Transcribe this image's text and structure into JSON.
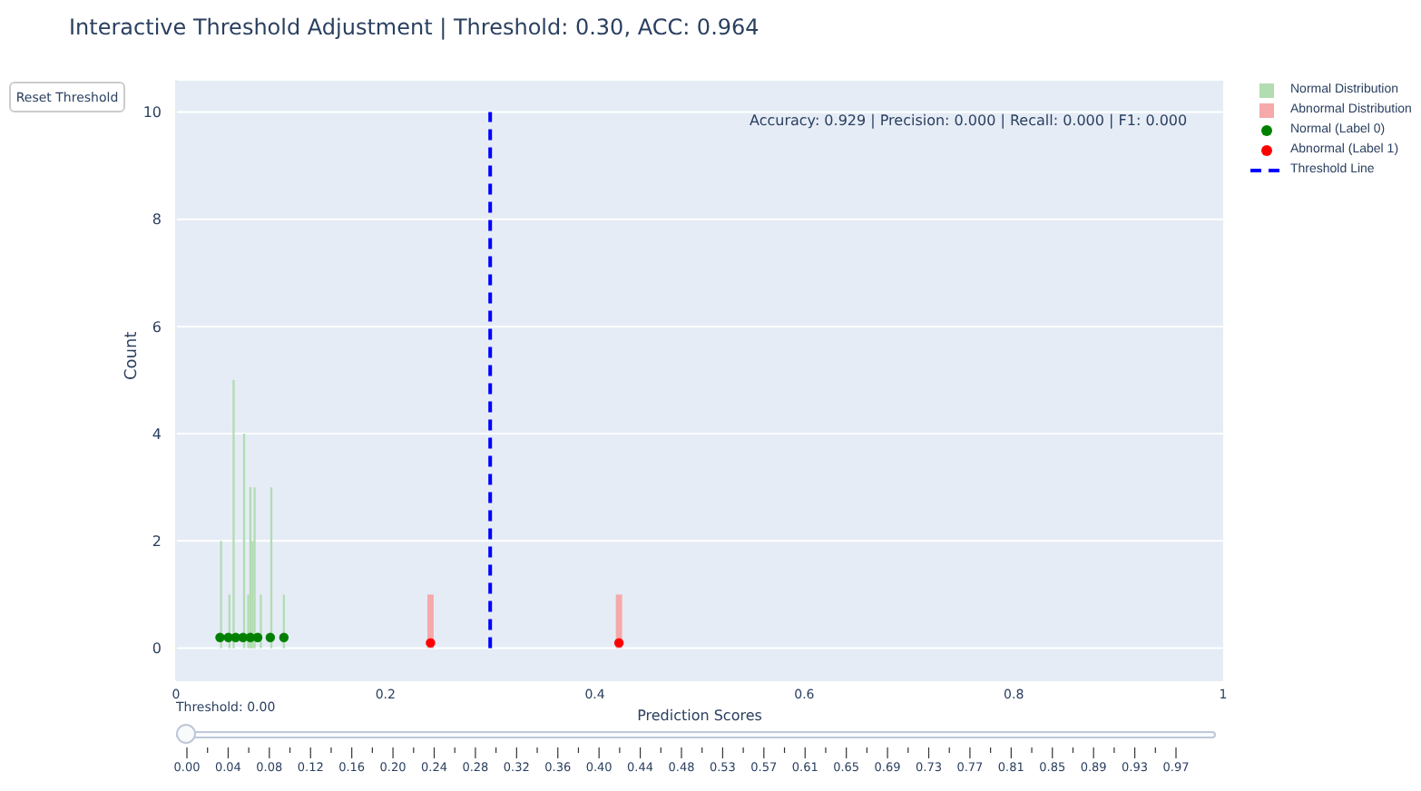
{
  "chart_data": {
    "type": "histogram",
    "title": "Interactive Threshold Adjustment | Threshold: 0.30, ACC: 0.964",
    "xlabel": "Prediction Scores",
    "ylabel": "Count",
    "xlim": [
      0,
      1
    ],
    "xticks": [
      0,
      0.2,
      0.4,
      0.6,
      0.8,
      1
    ],
    "ylim": [
      -0.6,
      10.6
    ],
    "yticks": [
      0,
      2,
      4,
      6,
      8,
      10
    ],
    "grid": "y",
    "legend": "top right",
    "annotations": [
      "Accuracy: 0.929 | Precision: 0.000 | Recall: 0.000 | F1: 0.000",
      "Reset Threshold",
      "Threshold: 0.00",
      "0.00",
      "0.04",
      "0.08",
      "0.12",
      "0.16",
      "0.20",
      "0.24",
      "0.28",
      "0.32",
      "0.36",
      "0.40",
      "0.44",
      "0.48",
      "0.53",
      "0.57",
      "0.61",
      "0.65",
      "0.69",
      "0.73",
      "0.77",
      "0.81",
      "0.85",
      "0.89",
      "0.93",
      "0.97"
    ],
    "series": [
      {
        "name": "Normal Distribution",
        "color": "#b2dcb2",
        "bins": [
          0.042,
          0.044,
          0.05,
          0.052,
          0.054,
          0.056,
          0.064,
          0.066,
          0.068,
          0.07,
          0.072,
          0.074,
          0.076,
          0.08,
          0.082,
          0.09,
          0.092,
          0.102,
          0.104
        ],
        "values": [
          2,
          0,
          1,
          0,
          5,
          0,
          4,
          0,
          1,
          3,
          2,
          3,
          0,
          1,
          0,
          3,
          0,
          1
        ]
      },
      {
        "name": "Abnormal Distribution",
        "color": "#f5a9a9",
        "bins": [
          0.24,
          0.246,
          0.42,
          0.426
        ],
        "values": [
          1,
          0,
          1
        ]
      },
      {
        "name": "Normal (Label 0)",
        "type": "scatter",
        "color": "#008000",
        "marker": "circle",
        "x": [
          0.042,
          0.05,
          0.057,
          0.064,
          0.071,
          0.078,
          0.09,
          0.103
        ],
        "values": [
          0.2,
          0.2,
          0.2,
          0.2,
          0.2,
          0.2,
          0.2,
          0.2
        ]
      },
      {
        "name": "Abnormal (Label 1)",
        "type": "scatter",
        "color": "#ff0000",
        "marker": "circle",
        "x": [
          0.243,
          0.423
        ],
        "values": [
          0.1,
          0.1
        ]
      },
      {
        "name": "Threshold Line",
        "type": "line",
        "color": "#0000ff",
        "line_style": "dashed",
        "marker": "none",
        "x": [
          0.3,
          0.3
        ],
        "values": [
          0,
          10
        ]
      }
    ]
  }
}
